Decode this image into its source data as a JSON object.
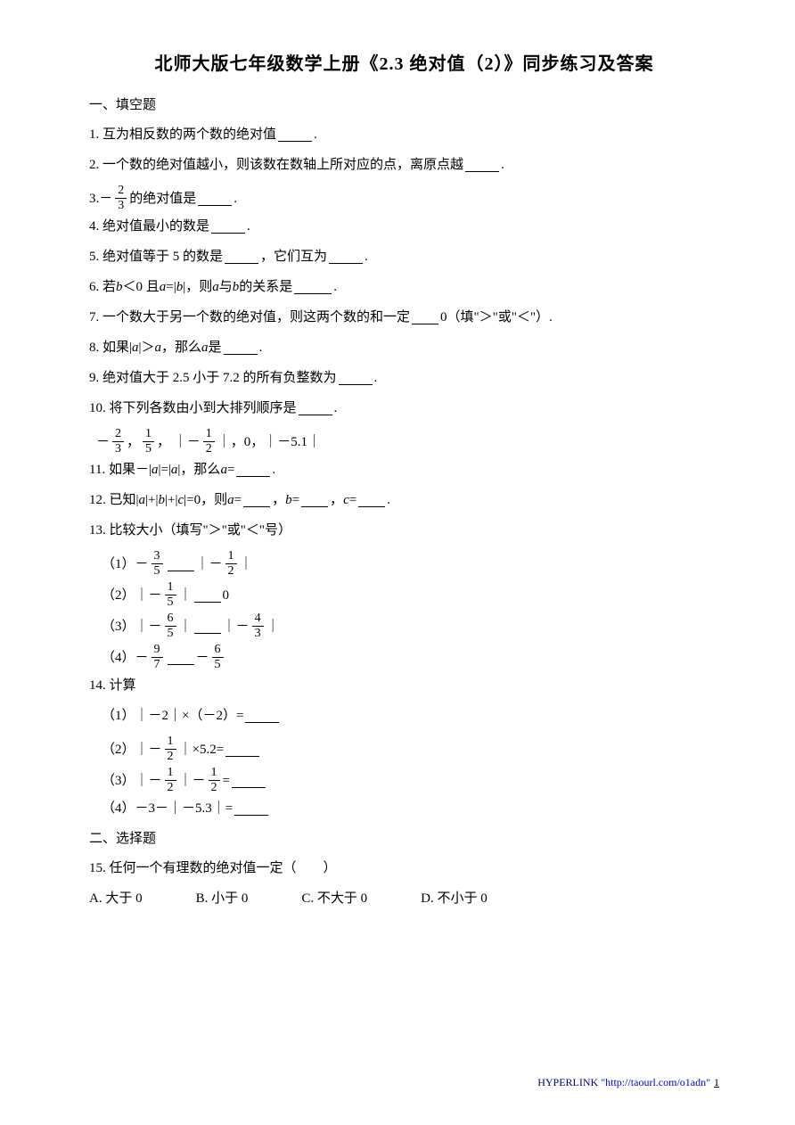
{
  "title": "北师大版七年级数学上册《2.3 绝对值（2）》同步练习及答案",
  "section1": "一、填空题",
  "q1": {
    "pre": "1. 互为相反数的两个数的绝对值",
    "post": "."
  },
  "q2": {
    "pre": "2. 一个数的绝对值越小，则该数在数轴上所对应的点，离原点越",
    "post": "."
  },
  "q3": {
    "pre": "3. ",
    "frac_num": "2",
    "frac_den": "3",
    "mid": " 的绝对值是",
    "post": "."
  },
  "q4": {
    "pre": "4. 绝对值最小的数是",
    "post": "."
  },
  "q5": {
    "pre": "5. 绝对值等于 5 的数是",
    "mid": "，它们互为",
    "post": "."
  },
  "q6": {
    "pre": "6. 若 ",
    "v1": "b",
    "m1": "＜0 且 ",
    "v2": "a",
    "m2": "=|",
    "v3": "b",
    "m3": "|，则 ",
    "v4": "a",
    "m4": " 与 ",
    "v5": "b",
    "m5": " 的关系是",
    "post": "."
  },
  "q7": {
    "pre": "7. 一个数大于另一个数的绝对值，则这两个数的和一定",
    "post": "0（填\"＞\"或\"＜\"）."
  },
  "q8": {
    "pre": "8. 如果|",
    "v1": "a",
    "m1": "|＞",
    "v2": "a",
    "m2": "，那么 ",
    "v3": "a",
    "m3": " 是",
    "post": "."
  },
  "q9": {
    "pre": "9. 绝对值大于 2.5 小于 7.2 的所有负整数为",
    "post": "."
  },
  "q10": {
    "pre": "10. 将下列各数由小到大排列顺序是",
    "post": "."
  },
  "q10b": {
    "f1n": "2",
    "f1d": "3",
    "sep1": "，",
    "f2n": "1",
    "f2d": "5",
    "sep2": " ， ｜－",
    "f3n": "1",
    "f3d": "2",
    "sep3": "｜，0，｜－5.1｜"
  },
  "q11": {
    "pre": "11. 如果－|",
    "v1": "a",
    "m1": "|=|",
    "v2": "a",
    "m2": "|，那么 ",
    "v3": "a",
    "m3": "=",
    "post": "."
  },
  "q12": {
    "pre": "12. 已知|",
    "v1": "a",
    "m1": "|+|",
    "v2": "b",
    "m2": "|+|",
    "v3": "c",
    "m3": "|=0，则 ",
    "v4": "a",
    "m4": "=",
    "sep1": "，",
    "v5": "b",
    "m5": "=",
    "sep2": "，",
    "v6": "c",
    "m6": "=",
    "post": "."
  },
  "q13": {
    "text": "13. 比较大小（填写\"＞\"或\"＜\"号）"
  },
  "q13_1": {
    "p": "（1）",
    "pre": "－",
    "f1n": "3",
    "f1d": "5",
    "mid": "｜－",
    "f2n": "1",
    "f2d": "2",
    "post": "｜"
  },
  "q13_2": {
    "p": "（2）",
    "pre": "｜－",
    "f1n": "1",
    "f1d": "5",
    "mid": "｜",
    "post": "0"
  },
  "q13_3": {
    "p": "（3）",
    "pre": "｜－",
    "f1n": "6",
    "f1d": "5",
    "mid1": "｜",
    "mid2": "｜－",
    "f2n": "4",
    "f2d": "3",
    "post": "｜"
  },
  "q13_4": {
    "p": "（4）",
    "pre": "－",
    "f1n": "9",
    "f1d": "7",
    "mid": "－",
    "f2n": "6",
    "f2d": "5"
  },
  "q14": {
    "text": "14. 计算"
  },
  "q14_1": {
    "p": "（1）",
    "text": "｜－2｜×（－2）="
  },
  "q14_2": {
    "p": "（2）",
    "pre": "｜－",
    "f1n": "1",
    "f1d": "2",
    "post": "｜×5.2="
  },
  "q14_3": {
    "p": "（3）",
    "pre": "｜－",
    "f1n": "1",
    "f1d": "2",
    "mid": "｜－",
    "f2n": "1",
    "f2d": "2",
    "post": "="
  },
  "q14_4": {
    "p": "（4）",
    "text": "－3－｜－5.3｜="
  },
  "section2": "二、选择题",
  "q15": {
    "text": "15. 任何一个有理数的绝对值一定（　　）"
  },
  "q15opts": {
    "a": "A. 大于 0",
    "b": "B. 小于 0",
    "c": "C. 不大于 0",
    "d": "D. 不小于 0"
  },
  "footer": {
    "label": "HYPERLINK ",
    "url": "\"http://taourl.com/o1adn\"",
    "page": "1"
  }
}
